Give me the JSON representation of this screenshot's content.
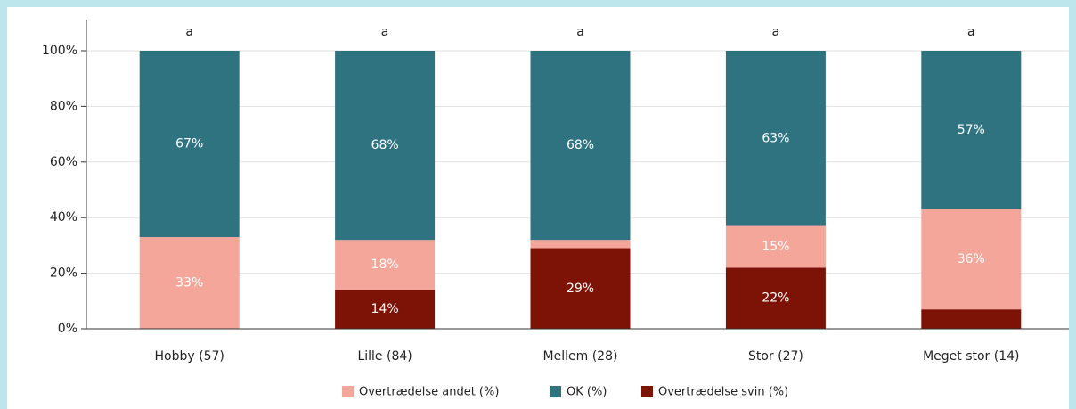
{
  "chart_data": {
    "type": "stacked_bar",
    "categories": [
      "Hobby (57)",
      "Lille (84)",
      "Mellem (28)",
      "Stor (27)",
      "Meget stor (14)"
    ],
    "annotations": [
      "a",
      "a",
      "a",
      "a",
      "a"
    ],
    "series": [
      {
        "name": "Overtrædelse andet (%)",
        "color": "#f4a69b",
        "values": [
          33,
          18,
          3,
          15,
          36
        ],
        "value_labels": [
          "33%",
          "18%",
          null,
          "15%",
          "36%"
        ]
      },
      {
        "name": "OK (%)",
        "color": "#2f7380",
        "values": [
          67,
          68,
          68,
          63,
          57
        ],
        "value_labels": [
          "67%",
          "68%",
          "68%",
          "63%",
          "57%"
        ]
      },
      {
        "name": "Overtrædelse svin (%)",
        "color": "#7d1306",
        "values": [
          0,
          14,
          29,
          22,
          7
        ],
        "value_labels": [
          null,
          "14%",
          "29%",
          "22%",
          null
        ]
      }
    ],
    "ylim": [
      0,
      100
    ],
    "yticks": [
      {
        "value": 0,
        "label": "0%"
      },
      {
        "value": 20,
        "label": "20%"
      },
      {
        "value": 40,
        "label": "40%"
      },
      {
        "value": 60,
        "label": "60%"
      },
      {
        "value": 80,
        "label": "80%"
      },
      {
        "value": 100,
        "label": "100%"
      }
    ],
    "grid": true
  }
}
